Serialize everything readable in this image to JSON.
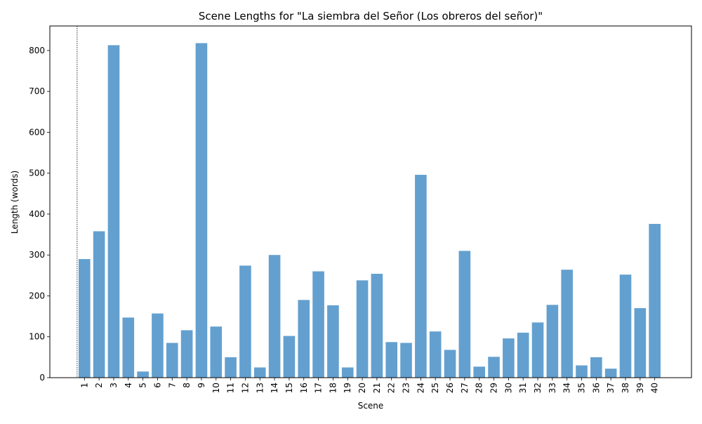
{
  "chart_data": {
    "type": "bar",
    "title": "Scene Lengths for \"La siembra del Señor (Los obreros del señor)\"",
    "xlabel": "Scene",
    "ylabel": "Length (words)",
    "categories": [
      "1",
      "2",
      "3",
      "4",
      "5",
      "6",
      "7",
      "8",
      "9",
      "10",
      "11",
      "12",
      "13",
      "14",
      "15",
      "16",
      "17",
      "18",
      "19",
      "20",
      "21",
      "22",
      "23",
      "24",
      "25",
      "26",
      "27",
      "28",
      "29",
      "30",
      "31",
      "32",
      "33",
      "34",
      "35",
      "36",
      "37",
      "38",
      "39",
      "40"
    ],
    "values": [
      290,
      358,
      813,
      147,
      15,
      157,
      85,
      116,
      818,
      125,
      50,
      274,
      25,
      300,
      102,
      190,
      260,
      177,
      25,
      238,
      254,
      87,
      85,
      496,
      113,
      68,
      310,
      27,
      51,
      96,
      110,
      135,
      178,
      264,
      30,
      50,
      22,
      252,
      170,
      376
    ],
    "ylim": [
      0,
      860
    ],
    "yticks": [
      0,
      100,
      200,
      300,
      400,
      500,
      600,
      700,
      800
    ],
    "grid": false,
    "legend": "none",
    "bar_color": "#3c88c3",
    "bar_opacity": 0.8,
    "vline_at_category": "1"
  }
}
